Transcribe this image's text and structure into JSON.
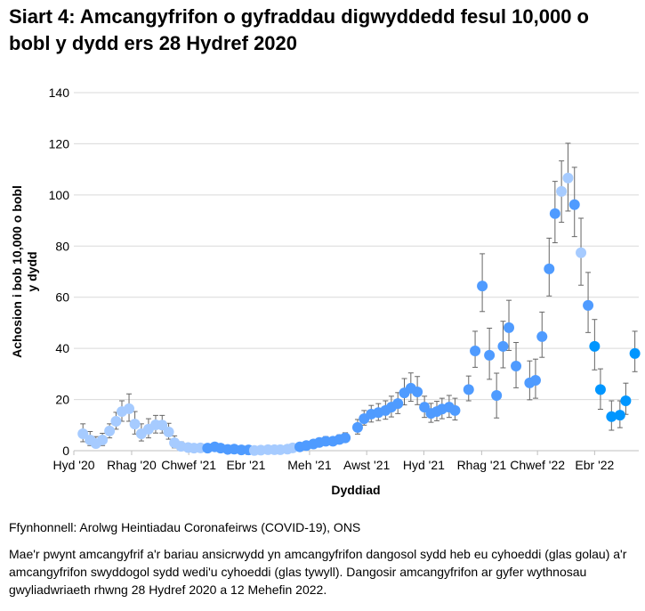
{
  "title": "Siart 4: Amcangyfrifon o gyfraddau digwyddedd fesul 10,000 o bobl y dydd ers 28 Hydref 2020",
  "source": "Ffynhonnell: Arolwg Heintiadau Coronafeirws (COVID-19), ONS",
  "note": "Mae'r pwynt amcangyfrif a'r bariau ansicrwydd yn amcangyfrifon dangosol sydd heb eu cyhoeddi (glas golau) a'r amcangyfrifon swyddogol sydd wedi'u cyhoeddi (glas tywyll). Dangosir amcangyfrifon ar gyfer wythnosau gwyliadwriaeth rhwng 28 Hydref 2020 a 12 Mehefin 2022.",
  "colors": {
    "light": "#a6cbff",
    "mid": "#4f9bff",
    "bright": "#0096ff",
    "error": "#666666",
    "grid": "#d9d9d9"
  },
  "chart_data": {
    "type": "scatter",
    "xlabel": "Dyddiad",
    "ylabel": "Achosion i bob 10,000 o bobl y dydd",
    "ylim": [
      0,
      140
    ],
    "yticks": [
      0,
      20,
      40,
      60,
      80,
      100,
      120,
      140
    ],
    "x_unit": "weeks since 28 Oct 2020",
    "xlim": [
      -1.4,
      85.6
    ],
    "xticks": [
      {
        "x": -1.4,
        "label": "Hyd '20"
      },
      {
        "x": 7.5,
        "label": "Rhag '20"
      },
      {
        "x": 16.3,
        "label": "Chwef '21"
      },
      {
        "x": 25.1,
        "label": "Ebr '21"
      },
      {
        "x": 34.9,
        "label": "Meh '21"
      },
      {
        "x": 43.7,
        "label": "Awst '21"
      },
      {
        "x": 52.5,
        "label": "Hyd '21"
      },
      {
        "x": 61.4,
        "label": "Rhag '21"
      },
      {
        "x": 70,
        "label": "Chwef '22"
      },
      {
        "x": 78.8,
        "label": "Ebr '22"
      }
    ],
    "grid": true,
    "points": [
      {
        "x": 0,
        "y": 6.6,
        "lo": 3.5,
        "hi": 10.5,
        "c": "light"
      },
      {
        "x": 1.1,
        "y": 4.2,
        "lo": 2,
        "hi": 7.5,
        "c": "light"
      },
      {
        "x": 2,
        "y": 2.8,
        "lo": 1.2,
        "hi": 5.5,
        "c": "light"
      },
      {
        "x": 3,
        "y": 4.2,
        "lo": 2,
        "hi": 6.8,
        "c": "light"
      },
      {
        "x": 4.1,
        "y": 7.7,
        "lo": 5,
        "hi": 10.5,
        "c": "light"
      },
      {
        "x": 5.1,
        "y": 11.5,
        "lo": 8.4,
        "hi": 15,
        "c": "light"
      },
      {
        "x": 6,
        "y": 15.3,
        "lo": 11.5,
        "hi": 19.5,
        "c": "light"
      },
      {
        "x": 7.1,
        "y": 16.4,
        "lo": 11.5,
        "hi": 22.2,
        "c": "light"
      },
      {
        "x": 8,
        "y": 10.4,
        "lo": 6.5,
        "hi": 15.3,
        "c": "light"
      },
      {
        "x": 9,
        "y": 6.6,
        "lo": 3.8,
        "hi": 10.5,
        "c": "light"
      },
      {
        "x": 10.1,
        "y": 8.4,
        "lo": 5,
        "hi": 12.5,
        "c": "light"
      },
      {
        "x": 11.2,
        "y": 10.1,
        "lo": 6.9,
        "hi": 13.8,
        "c": "light"
      },
      {
        "x": 12.2,
        "y": 10,
        "lo": 6.9,
        "hi": 13.8,
        "c": "light"
      },
      {
        "x": 13.2,
        "y": 7.3,
        "lo": 4.5,
        "hi": 10.7,
        "c": "light"
      },
      {
        "x": 14.1,
        "y": 3.1,
        "lo": 1.1,
        "hi": 5.8,
        "c": "light"
      },
      {
        "x": 15.1,
        "y": 1.7,
        "lo": 0.6,
        "hi": 3.5,
        "c": "light"
      },
      {
        "x": 16.2,
        "y": 1.2,
        "lo": 0.5,
        "hi": 2.5,
        "c": "light"
      },
      {
        "x": 17.1,
        "y": 1,
        "lo": 0.4,
        "hi": 2,
        "c": "light"
      },
      {
        "x": 18.1,
        "y": 1.1,
        "lo": 0.5,
        "hi": 2,
        "c": "light"
      },
      {
        "x": 19.2,
        "y": 1,
        "lo": 0.5,
        "hi": 1.8,
        "c": "mid"
      },
      {
        "x": 20.3,
        "y": 1.5,
        "lo": 0.8,
        "hi": 2.5,
        "c": "mid"
      },
      {
        "x": 21.2,
        "y": 1,
        "lo": 0.5,
        "hi": 1.8,
        "c": "mid"
      },
      {
        "x": 22.3,
        "y": 0.5,
        "lo": 0.2,
        "hi": 1,
        "c": "mid"
      },
      {
        "x": 23.3,
        "y": 0.6,
        "lo": 0.2,
        "hi": 1.1,
        "c": "mid"
      },
      {
        "x": 24.4,
        "y": 0.3,
        "lo": 0.1,
        "hi": 0.8,
        "c": "mid"
      },
      {
        "x": 25.5,
        "y": 0.3,
        "lo": 0.1,
        "hi": 0.8,
        "c": "mid"
      },
      {
        "x": 26.4,
        "y": 0.1,
        "lo": 0,
        "hi": 0.5,
        "c": "light"
      },
      {
        "x": 27.4,
        "y": 0.2,
        "lo": 0,
        "hi": 0.6,
        "c": "light"
      },
      {
        "x": 28.5,
        "y": 0.4,
        "lo": 0.1,
        "hi": 0.9,
        "c": "light"
      },
      {
        "x": 29.5,
        "y": 0.4,
        "lo": 0.1,
        "hi": 0.9,
        "c": "light"
      },
      {
        "x": 30.4,
        "y": 0.4,
        "lo": 0.1,
        "hi": 0.9,
        "c": "light"
      },
      {
        "x": 31.5,
        "y": 0.6,
        "lo": 0.2,
        "hi": 1.2,
        "c": "light"
      },
      {
        "x": 32.3,
        "y": 1.1,
        "lo": 0.5,
        "hi": 2,
        "c": "light"
      },
      {
        "x": 33.4,
        "y": 1.5,
        "lo": 0.8,
        "hi": 2.5,
        "c": "mid"
      },
      {
        "x": 34.4,
        "y": 2,
        "lo": 1.2,
        "hi": 3,
        "c": "mid"
      },
      {
        "x": 35.5,
        "y": 2.6,
        "lo": 1.6,
        "hi": 3.8,
        "c": "mid"
      },
      {
        "x": 36.4,
        "y": 3.2,
        "lo": 2,
        "hi": 4.6,
        "c": "mid"
      },
      {
        "x": 37.4,
        "y": 3.7,
        "lo": 2.4,
        "hi": 5.5,
        "c": "mid"
      },
      {
        "x": 38.5,
        "y": 3.7,
        "lo": 2.5,
        "hi": 5.2,
        "c": "mid"
      },
      {
        "x": 39.5,
        "y": 4.4,
        "lo": 3,
        "hi": 6.2,
        "c": "mid"
      },
      {
        "x": 40.4,
        "y": 5,
        "lo": 3.5,
        "hi": 7,
        "c": "mid"
      },
      {
        "x": 42.3,
        "y": 9.1,
        "lo": 6.5,
        "hi": 12.2,
        "c": "mid"
      },
      {
        "x": 43.3,
        "y": 12.5,
        "lo": 10,
        "hi": 15.7,
        "c": "mid"
      },
      {
        "x": 44.4,
        "y": 14.3,
        "lo": 11.2,
        "hi": 17.7,
        "c": "mid"
      },
      {
        "x": 45.5,
        "y": 14.9,
        "lo": 11.8,
        "hi": 18.4,
        "c": "mid"
      },
      {
        "x": 46.6,
        "y": 15.7,
        "lo": 12.3,
        "hi": 19.5,
        "c": "mid"
      },
      {
        "x": 47.5,
        "y": 17,
        "lo": 13.2,
        "hi": 21.3,
        "c": "mid"
      },
      {
        "x": 48.5,
        "y": 18.4,
        "lo": 14.5,
        "hi": 22.7,
        "c": "mid"
      },
      {
        "x": 49.5,
        "y": 22.6,
        "lo": 17.9,
        "hi": 28.2,
        "c": "mid"
      },
      {
        "x": 50.5,
        "y": 24.4,
        "lo": 19.3,
        "hi": 30.4,
        "c": "mid"
      },
      {
        "x": 51.5,
        "y": 23,
        "lo": 18,
        "hi": 29,
        "c": "mid"
      },
      {
        "x": 52.6,
        "y": 17,
        "lo": 13,
        "hi": 21.3,
        "c": "mid"
      },
      {
        "x": 53.6,
        "y": 14.6,
        "lo": 11.1,
        "hi": 18.5,
        "c": "mid"
      },
      {
        "x": 54.5,
        "y": 15.3,
        "lo": 11.7,
        "hi": 19.3,
        "c": "mid"
      },
      {
        "x": 55.3,
        "y": 16.3,
        "lo": 12.5,
        "hi": 20.5,
        "c": "mid"
      },
      {
        "x": 56.4,
        "y": 17,
        "lo": 13,
        "hi": 21.6,
        "c": "mid"
      },
      {
        "x": 57.3,
        "y": 15.7,
        "lo": 12,
        "hi": 20.5,
        "c": "mid"
      },
      {
        "x": 59.4,
        "y": 23.9,
        "lo": 19.5,
        "hi": 29.2,
        "c": "mid"
      },
      {
        "x": 60.4,
        "y": 39,
        "lo": 32.6,
        "hi": 46.7,
        "c": "mid"
      },
      {
        "x": 61.5,
        "y": 64.4,
        "lo": 54.4,
        "hi": 77,
        "c": "mid"
      },
      {
        "x": 62.6,
        "y": 37.3,
        "lo": 27.9,
        "hi": 47.9,
        "c": "mid"
      },
      {
        "x": 63.7,
        "y": 21.6,
        "lo": 12.8,
        "hi": 30.3,
        "c": "mid"
      },
      {
        "x": 64.7,
        "y": 40.8,
        "lo": 32.4,
        "hi": 50.6,
        "c": "mid"
      },
      {
        "x": 65.6,
        "y": 48.1,
        "lo": 39.2,
        "hi": 58.8,
        "c": "mid"
      },
      {
        "x": 66.7,
        "y": 33.1,
        "lo": 24.6,
        "hi": 42.3,
        "c": "mid"
      },
      {
        "x": 68.8,
        "y": 26.5,
        "lo": 19.9,
        "hi": 35.1,
        "c": "mid"
      },
      {
        "x": 69.7,
        "y": 27.5,
        "lo": 20.5,
        "hi": 35.8,
        "c": "mid"
      },
      {
        "x": 70.7,
        "y": 44.6,
        "lo": 36.5,
        "hi": 54.2,
        "c": "mid"
      },
      {
        "x": 71.8,
        "y": 71.1,
        "lo": 60.5,
        "hi": 83.1,
        "c": "mid"
      },
      {
        "x": 72.7,
        "y": 92.7,
        "lo": 81.3,
        "hi": 105.3,
        "c": "mid"
      },
      {
        "x": 73.7,
        "y": 101.4,
        "lo": 89.3,
        "hi": 113.3,
        "c": "light"
      },
      {
        "x": 74.7,
        "y": 106.6,
        "lo": 93.7,
        "hi": 120.2,
        "c": "light"
      },
      {
        "x": 75.7,
        "y": 96.2,
        "lo": 83.7,
        "hi": 110.8,
        "c": "mid"
      },
      {
        "x": 76.7,
        "y": 77.4,
        "lo": 64.7,
        "hi": 90.9,
        "c": "light"
      },
      {
        "x": 77.8,
        "y": 56.8,
        "lo": 46.2,
        "hi": 69.7,
        "c": "mid"
      },
      {
        "x": 78.8,
        "y": 40.8,
        "lo": 31.6,
        "hi": 51.3,
        "c": "bright"
      },
      {
        "x": 79.7,
        "y": 23.9,
        "lo": 16.2,
        "hi": 32,
        "c": "bright"
      },
      {
        "x": 81.4,
        "y": 13.3,
        "lo": 8,
        "hi": 19.5,
        "c": "bright"
      },
      {
        "x": 82.7,
        "y": 13.9,
        "lo": 9,
        "hi": 19.5,
        "c": "bright"
      },
      {
        "x": 83.6,
        "y": 19.5,
        "lo": 14.2,
        "hi": 26.4,
        "c": "bright"
      },
      {
        "x": 85,
        "y": 38,
        "lo": 30.9,
        "hi": 46.7,
        "c": "bright"
      }
    ]
  }
}
